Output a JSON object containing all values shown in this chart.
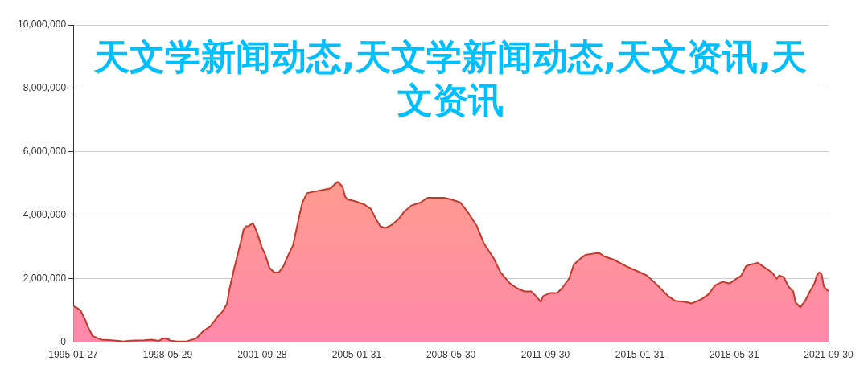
{
  "chart_data": {
    "type": "area",
    "title": "天文学新闻动态,天文学新闻动态,天文资讯,天文资讯",
    "x": [
      "1995-01-27",
      "1995-03",
      "1995-05",
      "1995-07",
      "1995-08",
      "1995-10",
      "1996-01",
      "1996-02",
      "1996-06",
      "1996-09",
      "1996-11",
      "1997-02",
      "1997-08",
      "1997-11",
      "1998-02",
      "1998-04",
      "1998-06",
      "1998-07",
      "1998-10",
      "1999-02",
      "1999-06",
      "1999-09",
      "1999-12",
      "2000-02",
      "2000-03",
      "2000-05",
      "2000-07",
      "2000-08",
      "2000-10",
      "2000-12",
      "2001-01",
      "2001-02",
      "2001-03",
      "2001-04",
      "2001-06",
      "2001-07",
      "2001-08",
      "2001-10",
      "2001-11",
      "2002-01",
      "2002-03",
      "2002-05",
      "2002-07",
      "2002-09",
      "2002-11",
      "2002-12",
      "2003-02",
      "2003-03",
      "2003-05",
      "2004-03",
      "2004-05",
      "2004-06",
      "2004-08",
      "2004-09",
      "2004-10",
      "2005-01",
      "2005-03",
      "2005-05",
      "2005-08",
      "2005-10",
      "2005-12",
      "2006-02",
      "2006-05",
      "2006-08",
      "2006-10",
      "2007-01",
      "2007-05",
      "2007-08",
      "2007-12",
      "2008-03",
      "2008-06",
      "2008-10",
      "2009-01",
      "2009-05",
      "2009-08",
      "2009-12",
      "2010-03",
      "2010-07",
      "2010-10",
      "2011-01",
      "2011-04",
      "2011-06",
      "2011-08",
      "2011-09",
      "2011-12",
      "2012-03",
      "2012-05",
      "2012-08",
      "2012-10",
      "2013-01",
      "2013-03",
      "2013-07",
      "2013-09",
      "2013-11",
      "2014-03",
      "2014-08",
      "2015-02",
      "2015-05",
      "2015-08",
      "2015-10",
      "2016-02",
      "2016-05",
      "2016-09",
      "2016-12",
      "2017-04",
      "2017-07",
      "2017-10",
      "2018-01",
      "2018-04",
      "2018-07",
      "2018-09",
      "2018-11",
      "2019-01",
      "2019-04",
      "2019-07",
      "2019-10",
      "2019-12",
      "2020-01",
      "2020-03",
      "2020-05",
      "2020-07",
      "2020-08",
      "2020-10",
      "2020-12",
      "2021-02",
      "2021-04",
      "2021-05",
      "2021-06",
      "2021-07",
      "2021-08",
      "2021-09-30"
    ],
    "series": [
      {
        "color": "#c23a2e",
        "values": [
          1140000,
          1100000,
          1000000,
          700000,
          500000,
          200000,
          100000,
          80000,
          60000,
          40000,
          20000,
          50000,
          60000,
          80000,
          40000,
          120000,
          100000,
          50000,
          20000,
          30000,
          120000,
          350000,
          500000,
          700000,
          800000,
          950000,
          1200000,
          1650000,
          2300000,
          2900000,
          3200000,
          3550000,
          3650000,
          3650000,
          3750000,
          3600000,
          3400000,
          2950000,
          2800000,
          2350000,
          2200000,
          2200000,
          2400000,
          2750000,
          3050000,
          3400000,
          4100000,
          4400000,
          4700000,
          4850000,
          5000000,
          5050000,
          4900000,
          4600000,
          4500000,
          4450000,
          4400000,
          4350000,
          4200000,
          3900000,
          3650000,
          3600000,
          3700000,
          3900000,
          4100000,
          4300000,
          4400000,
          4550000,
          4550000,
          4550000,
          4500000,
          4400000,
          4100000,
          3650000,
          3100000,
          2650000,
          2200000,
          1850000,
          1700000,
          1600000,
          1600000,
          1450000,
          1270000,
          1450000,
          1550000,
          1550000,
          1700000,
          2000000,
          2450000,
          2650000,
          2750000,
          2800000,
          2800000,
          2700000,
          2600000,
          2400000,
          2200000,
          2100000,
          1900000,
          1750000,
          1450000,
          1300000,
          1270000,
          1220000,
          1350000,
          1500000,
          1800000,
          1900000,
          1850000,
          2000000,
          2100000,
          2400000,
          2450000,
          2500000,
          2350000,
          2200000,
          2000000,
          2100000,
          2050000,
          1750000,
          1600000,
          1250000,
          1100000,
          1300000,
          1600000,
          1850000,
          2100000,
          2200000,
          2150000,
          1750000,
          1600000
        ]
      }
    ],
    "xlim": [
      "1995-01-27",
      "2021-09-30"
    ],
    "xticks": [
      "1995-01-27",
      "1998-05-29",
      "2001-09-28",
      "2005-01-31",
      "2008-05-30",
      "2011-09-30",
      "2015-01-31",
      "2018-05-31",
      "2021-09-30"
    ],
    "ylim": [
      0,
      10000000
    ],
    "yticks": [
      {
        "value": 0,
        "label": "0"
      },
      {
        "value": 2000000,
        "label": "2,000,000"
      },
      {
        "value": 4000000,
        "label": "4,000,000"
      },
      {
        "value": 6000000,
        "label": "6,000,000"
      },
      {
        "value": 8000000,
        "label": "8,000,000"
      },
      {
        "value": 10000000,
        "label": "10,000,000"
      }
    ],
    "grid": "y",
    "legend": false,
    "marker": "none",
    "line_style": "solid"
  }
}
